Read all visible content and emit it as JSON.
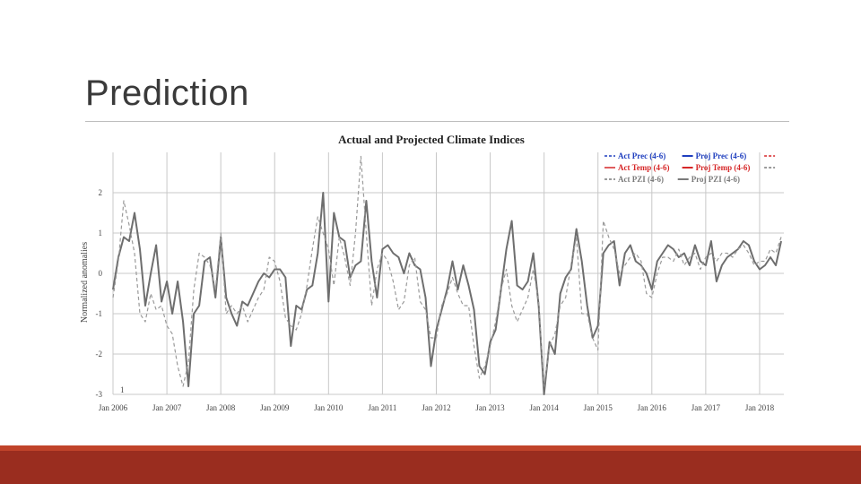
{
  "slide": {
    "title": "Prediction"
  },
  "colors": {
    "footer": "#9a2d1f",
    "footer_accent": "#c0432a",
    "prec": "#1f3fbf",
    "temp": "#d62728",
    "pzi": "#7a7a7a",
    "proj_pzi": "#6e6e6e"
  },
  "chart_data": {
    "type": "line",
    "title": "Actual and Projected Climate Indices",
    "ylabel": "Normalized anomalies",
    "xlabel": "",
    "ylim": [
      -3,
      3
    ],
    "y_ticks": [
      "2",
      "1",
      "0",
      "-1",
      "-2",
      "-3"
    ],
    "x_ticks": [
      "Jan 2006",
      "Jan 2007",
      "Jan 2008",
      "Jan 2009",
      "Jan 2010",
      "Jan 2011",
      "Jan 2012",
      "Jan 2013",
      "Jan 2014",
      "Jan 2015",
      "Jan 2016",
      "Jan 2017",
      "Jan 2018"
    ],
    "corner_annotation": "1",
    "grid": true,
    "legend_placement": "top-right",
    "legend": [
      [
        "Act Prec (4-6)",
        "Proj Prec (4-6)"
      ],
      [
        "Act Temp (4-6)",
        "Proj Temp (4-6)"
      ],
      [
        "Act PZI (4-6)",
        "Proj PZI (4-6)"
      ]
    ],
    "series": [
      {
        "name": "Proj PZI (4-6)",
        "style": "solid",
        "x": [
          2006.0,
          2006.1,
          2006.2,
          2006.3,
          2006.4,
          2006.5,
          2006.6,
          2006.7,
          2006.8,
          2006.9,
          2007.0,
          2007.1,
          2007.2,
          2007.3,
          2007.4,
          2007.5,
          2007.6,
          2007.7,
          2007.8,
          2007.9,
          2008.0,
          2008.1,
          2008.2,
          2008.3,
          2008.4,
          2008.5,
          2008.6,
          2008.7,
          2008.8,
          2008.9,
          2009.0,
          2009.1,
          2009.2,
          2009.3,
          2009.4,
          2009.5,
          2009.6,
          2009.7,
          2009.8,
          2009.9,
          2010.0,
          2010.1,
          2010.2,
          2010.3,
          2010.4,
          2010.5,
          2010.6,
          2010.7,
          2010.8,
          2010.9,
          2011.0,
          2011.1,
          2011.2,
          2011.3,
          2011.4,
          2011.5,
          2011.6,
          2011.7,
          2011.8,
          2011.9,
          2012.0,
          2012.1,
          2012.2,
          2012.3,
          2012.4,
          2012.5,
          2012.6,
          2012.7,
          2012.8,
          2012.9,
          2013.0,
          2013.1,
          2013.2,
          2013.3,
          2013.4,
          2013.5,
          2013.6,
          2013.7,
          2013.8,
          2013.9,
          2014.0,
          2014.1,
          2014.2,
          2014.3,
          2014.4,
          2014.5,
          2014.6,
          2014.7,
          2014.8,
          2014.9,
          2015.0,
          2015.1,
          2015.2,
          2015.3,
          2015.4,
          2015.5,
          2015.6,
          2015.7,
          2015.8,
          2015.9,
          2016.0,
          2016.1,
          2016.2,
          2016.3,
          2016.4,
          2016.5,
          2016.6,
          2016.7,
          2016.8,
          2016.9,
          2017.0,
          2017.1,
          2017.2,
          2017.3,
          2017.4,
          2017.5,
          2017.6,
          2017.7,
          2017.8,
          2017.9,
          2018.0,
          2018.1,
          2018.2,
          2018.3,
          2018.4
        ],
        "values": [
          -0.4,
          0.4,
          0.9,
          0.8,
          1.5,
          0.6,
          -0.8,
          0.0,
          0.7,
          -0.7,
          -0.2,
          -1.0,
          -0.2,
          -1.2,
          -2.8,
          -1.0,
          -0.8,
          0.3,
          0.4,
          -0.6,
          0.9,
          -0.6,
          -1.0,
          -1.3,
          -0.7,
          -0.8,
          -0.5,
          -0.2,
          0.0,
          -0.1,
          0.1,
          0.1,
          -0.1,
          -1.8,
          -0.8,
          -0.9,
          -0.4,
          -0.3,
          0.5,
          2.0,
          -0.7,
          1.5,
          0.9,
          0.8,
          -0.1,
          0.2,
          0.3,
          1.8,
          0.3,
          -0.6,
          0.6,
          0.7,
          0.5,
          0.4,
          0.0,
          0.5,
          0.2,
          0.1,
          -0.6,
          -2.3,
          -1.4,
          -0.9,
          -0.4,
          0.3,
          -0.4,
          0.2,
          -0.3,
          -0.9,
          -2.3,
          -2.5,
          -1.7,
          -1.4,
          -0.4,
          0.6,
          1.3,
          -0.3,
          -0.4,
          -0.2,
          0.5,
          -0.8,
          -3.0,
          -1.7,
          -2.0,
          -0.5,
          -0.1,
          0.1,
          1.1,
          0.3,
          -0.8,
          -1.6,
          -1.3,
          0.5,
          0.7,
          0.8,
          -0.3,
          0.5,
          0.7,
          0.3,
          0.2,
          0.0,
          -0.4,
          0.3,
          0.5,
          0.7,
          0.6,
          0.4,
          0.5,
          0.2,
          0.7,
          0.3,
          0.2,
          0.8,
          -0.2,
          0.2,
          0.4,
          0.5,
          0.6,
          0.8,
          0.7,
          0.3,
          0.1,
          0.2,
          0.4,
          0.2,
          0.8
        ]
      },
      {
        "name": "Act PZI (4-6)",
        "style": "dashed",
        "x": [
          2006.0,
          2006.1,
          2006.2,
          2006.3,
          2006.4,
          2006.5,
          2006.6,
          2006.7,
          2006.8,
          2006.9,
          2007.0,
          2007.1,
          2007.2,
          2007.3,
          2007.4,
          2007.5,
          2007.6,
          2007.7,
          2007.8,
          2007.9,
          2008.0,
          2008.1,
          2008.2,
          2008.3,
          2008.4,
          2008.5,
          2008.6,
          2008.7,
          2008.8,
          2008.9,
          2009.0,
          2009.1,
          2009.2,
          2009.3,
          2009.4,
          2009.5,
          2009.6,
          2009.7,
          2009.8,
          2009.9,
          2010.0,
          2010.1,
          2010.2,
          2010.3,
          2010.4,
          2010.5,
          2010.6,
          2010.7,
          2010.8,
          2010.9,
          2011.0,
          2011.1,
          2011.2,
          2011.3,
          2011.4,
          2011.5,
          2011.6,
          2011.7,
          2011.8,
          2011.9,
          2012.0,
          2012.1,
          2012.2,
          2012.3,
          2012.4,
          2012.5,
          2012.6,
          2012.7,
          2012.8,
          2012.9,
          2013.0,
          2013.1,
          2013.2,
          2013.3,
          2013.4,
          2013.5,
          2013.6,
          2013.7,
          2013.8,
          2013.9,
          2014.0,
          2014.1,
          2014.2,
          2014.3,
          2014.4,
          2014.5,
          2014.6,
          2014.7,
          2014.8,
          2014.9,
          2015.0,
          2015.1,
          2015.2,
          2015.3,
          2015.4,
          2015.5,
          2015.6,
          2015.7,
          2015.8,
          2015.9,
          2016.0,
          2016.1,
          2016.2,
          2016.3,
          2016.4,
          2016.5,
          2016.6,
          2016.7,
          2016.8,
          2016.9,
          2017.0,
          2017.1,
          2017.2,
          2017.3,
          2017.4,
          2017.5,
          2017.6,
          2017.7,
          2017.8,
          2017.9,
          2018.0,
          2018.1,
          2018.2,
          2018.3,
          2018.4
        ],
        "values": [
          -0.6,
          0.3,
          1.8,
          1.2,
          0.5,
          -1.0,
          -1.2,
          -0.5,
          -0.9,
          -0.8,
          -1.3,
          -1.5,
          -2.3,
          -2.8,
          -2.2,
          -0.4,
          0.5,
          0.4,
          0.2,
          -0.4,
          1.0,
          -1.0,
          -0.8,
          -1.0,
          -0.8,
          -1.2,
          -0.9,
          -0.6,
          -0.4,
          0.4,
          0.3,
          -0.2,
          -1.1,
          -1.3,
          -1.4,
          -1.0,
          -0.3,
          0.6,
          1.4,
          1.0,
          0.6,
          -0.3,
          0.9,
          0.4,
          -0.3,
          1.0,
          2.9,
          1.0,
          -0.8,
          0.1,
          0.5,
          0.3,
          -0.2,
          -0.9,
          -0.7,
          0.2,
          0.4,
          -0.7,
          -0.9,
          -1.6,
          -1.6,
          -0.8,
          -0.5,
          -0.1,
          -0.5,
          -0.8,
          -0.8,
          -1.8,
          -2.6,
          -2.3,
          -1.8,
          -1.2,
          -0.4,
          0.1,
          -0.8,
          -1.2,
          -0.9,
          -0.6,
          0.1,
          -0.7,
          -2.8,
          -1.8,
          -1.5,
          -0.8,
          -0.6,
          0.2,
          0.9,
          -1.0,
          -1.0,
          -1.6,
          -1.9,
          1.3,
          0.9,
          0.6,
          0.0,
          0.2,
          0.4,
          0.5,
          0.3,
          -0.5,
          -0.6,
          0.0,
          0.4,
          0.4,
          0.3,
          0.6,
          0.2,
          0.4,
          0.5,
          0.1,
          0.4,
          0.5,
          0.3,
          0.5,
          0.5,
          0.4,
          0.6,
          0.7,
          0.5,
          0.2,
          0.3,
          0.3,
          0.6,
          0.5,
          0.9
        ]
      }
    ]
  }
}
